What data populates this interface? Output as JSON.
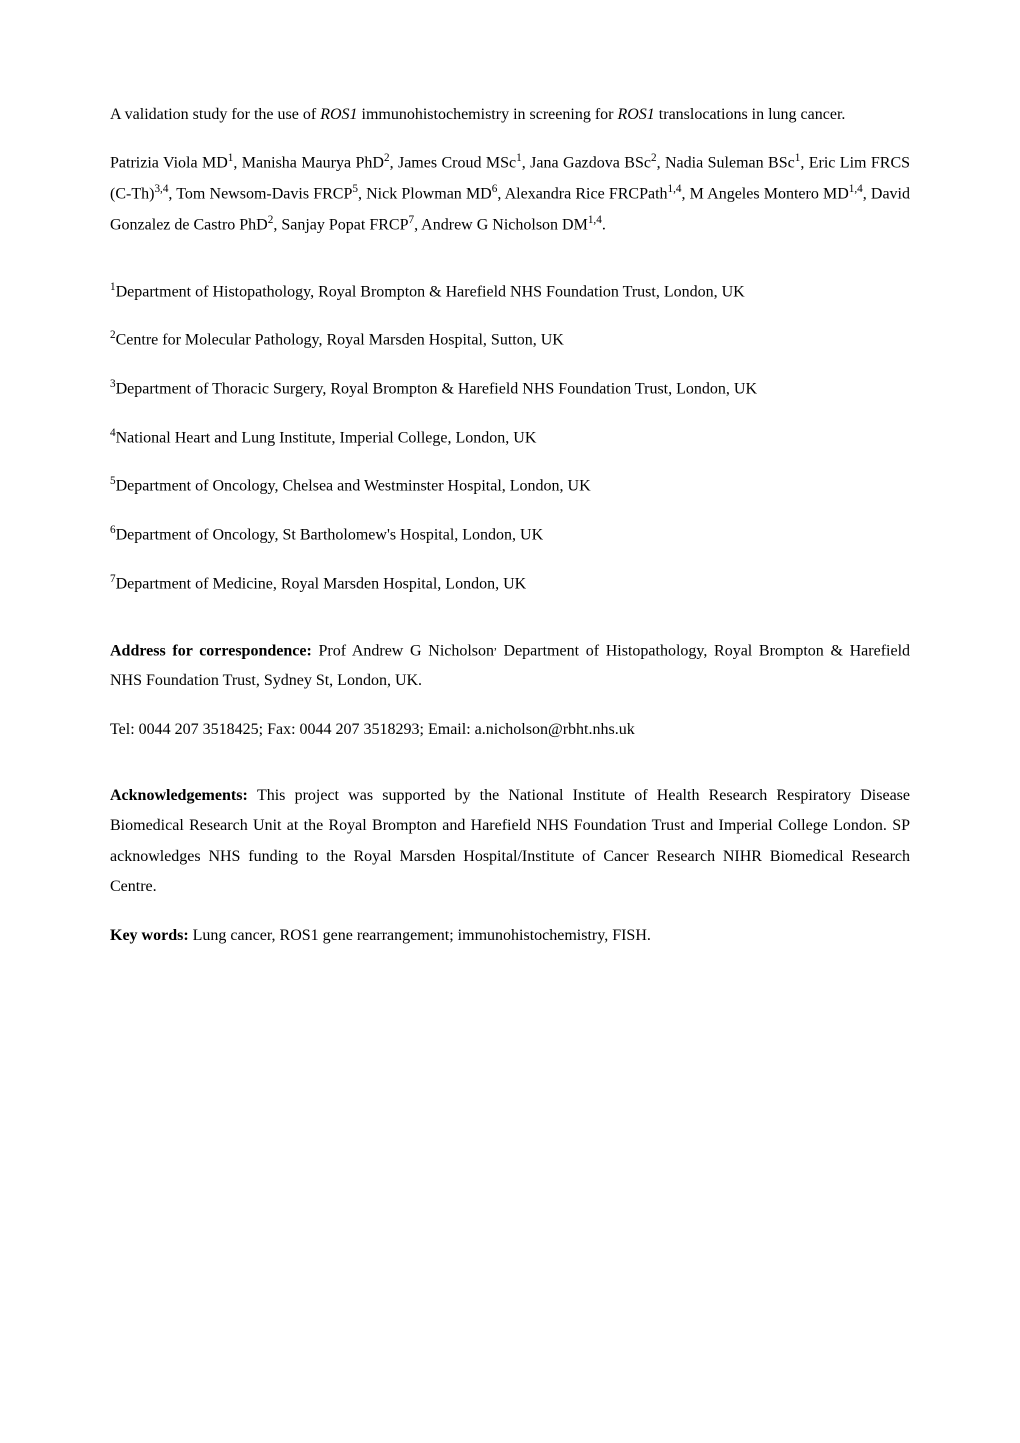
{
  "title": {
    "pre": "A validation study for the use of ",
    "gene1": "ROS1",
    "mid": " immunohistochemistry in screening for ",
    "gene2": "ROS1",
    "post": " translocations in lung cancer."
  },
  "authors": {
    "a1_name": "Patrizia Viola MD",
    "a1_sup": "1",
    "a2_name": ", Manisha Maurya PhD",
    "a2_sup": "2",
    "a3_name": ", James Croud MSc",
    "a3_sup": "1",
    "a4_name": ", Jana Gazdova BSc",
    "a4_sup": "2",
    "a5_name": ", Nadia Suleman BSc",
    "a5_sup": "1",
    "a6_name": ", Eric Lim FRCS (C-Th)",
    "a6_sup": "3,4",
    "a7_name": ", Tom Newsom-Davis FRCP",
    "a7_sup": "5",
    "a8_name": ", Nick Plowman MD",
    "a8_sup": "6",
    "a9_name": ", Alexandra Rice FRCPath",
    "a9_sup": "1,4",
    "a10_name": ", M Angeles Montero MD",
    "a10_sup": "1,4",
    "a11_name": ", David Gonzalez de Castro PhD",
    "a11_sup": "2",
    "a12_name": ", Sanjay Popat FRCP",
    "a12_sup": "7",
    "a13_name": ", Andrew G Nicholson DM",
    "a13_sup": "1,4",
    "end": "."
  },
  "affiliations": {
    "af1_sup": "1",
    "af1_text": "Department of Histopathology, Royal Brompton & Harefield NHS Foundation Trust, London, UK",
    "af2_sup": "2",
    "af2_text": "Centre for Molecular Pathology, Royal Marsden Hospital, Sutton, UK",
    "af3_sup": "3",
    "af3_text": "Department of Thoracic Surgery, Royal Brompton & Harefield NHS Foundation Trust, London, UK",
    "af4_sup": "4",
    "af4_text": "National Heart and Lung Institute, Imperial College, London, UK",
    "af5_sup": "5",
    "af5_text": "Department of Oncology, Chelsea and Westminster Hospital, London, UK",
    "af6_sup": "6",
    "af6_text": "Department of Oncology, St Bartholomew's Hospital, London, UK",
    "af7_sup": "7",
    "af7_text": "Department of Medicine, Royal Marsden Hospital, London, UK"
  },
  "correspondence": {
    "label": "Address for correspondence: ",
    "text": "Prof Andrew G Nicholson",
    "dot": ",",
    "rest": " Department of Histopathology, Royal Brompton & Harefield NHS Foundation Trust, Sydney St, London, UK."
  },
  "contact": {
    "text": "Tel: 0044 207 3518425; Fax: 0044 207 3518293; Email: a.nicholson@rbht.nhs.uk"
  },
  "acknowledgements": {
    "label": "Acknowledgements: ",
    "text": "This project was supported by the National Institute of Health Research Respiratory Disease Biomedical Research Unit at the Royal Brompton and Harefield NHS Foundation Trust and Imperial College London. SP acknowledges NHS funding to the Royal Marsden Hospital/Institute of Cancer Research NIHR Biomedical Research Centre."
  },
  "keywords": {
    "label": "Key words: ",
    "text": "Lung cancer, ROS1 gene rearrangement; immunohistochemistry, FISH."
  }
}
